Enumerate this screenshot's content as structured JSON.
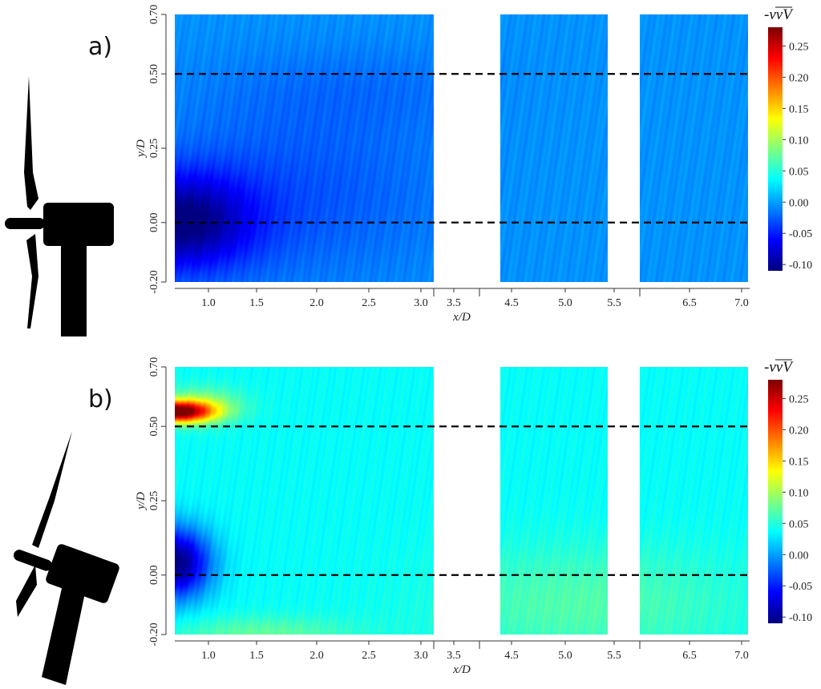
{
  "chart_data": [
    {
      "type": "heatmap",
      "panel_label": "a)",
      "xlabel": "x/D",
      "ylabel": "y/D",
      "x_ticks": [
        "1.0",
        "1.5",
        "2.0",
        "2.5",
        "3.0",
        "3.5",
        "4.5",
        "5.0",
        "5.5",
        "6.5",
        "7.0"
      ],
      "y_ticks": [
        "-0.20",
        "0.00",
        "0.25",
        "0.50",
        "0.70"
      ],
      "measured_x_windows": [
        [
          0.65,
          3.2
        ],
        [
          4.3,
          5.45
        ],
        [
          5.85,
          7.05
        ]
      ],
      "ylim": [
        -0.2,
        0.7
      ],
      "reference_lines_y": [
        0.0,
        0.5
      ],
      "colorbar": {
        "title": "-vvV",
        "range": [
          -0.11,
          0.28
        ],
        "ticks": [
          "0.25",
          "0.20",
          "0.15",
          "0.10",
          "0.05",
          "0.00",
          "-0.05",
          "-0.10"
        ]
      },
      "field": {
        "background": -0.005,
        "features": [
          {
            "x": 0.7,
            "y": 0.0,
            "sx": 0.7,
            "sy": 0.16,
            "value": -0.1
          },
          {
            "x": 1.8,
            "y": 0.1,
            "sx": 1.5,
            "sy": 0.3,
            "value": -0.025
          },
          {
            "x": 2.5,
            "y": 0.45,
            "sx": 1.5,
            "sy": 0.15,
            "value": -0.012
          }
        ]
      }
    },
    {
      "type": "heatmap",
      "panel_label": "b)",
      "xlabel": "x/D",
      "ylabel": "y/D",
      "x_ticks": [
        "1.0",
        "1.5",
        "2.0",
        "2.5",
        "3.0",
        "3.5",
        "4.5",
        "5.0",
        "5.5",
        "6.5",
        "7.0"
      ],
      "y_ticks": [
        "-0.20",
        "0.00",
        "0.25",
        "0.50",
        "0.70"
      ],
      "measured_x_windows": [
        [
          0.65,
          3.2
        ],
        [
          4.3,
          5.45
        ],
        [
          5.85,
          7.05
        ]
      ],
      "ylim": [
        -0.2,
        0.7
      ],
      "reference_lines_y": [
        0.0,
        0.5
      ],
      "colorbar": {
        "title": "-vvV",
        "range": [
          -0.11,
          0.28
        ],
        "ticks": [
          "0.25",
          "0.20",
          "0.15",
          "0.10",
          "0.05",
          "0.00",
          "-0.05",
          "-0.10"
        ]
      },
      "field": {
        "background": 0.038,
        "features": [
          {
            "x": 0.65,
            "y": 0.55,
            "sx": 0.35,
            "sy": 0.035,
            "value": 0.24
          },
          {
            "x": 0.9,
            "y": 0.57,
            "sx": 0.4,
            "sy": 0.06,
            "value": 0.06
          },
          {
            "x": 0.65,
            "y": 0.04,
            "sx": 0.35,
            "sy": 0.12,
            "value": -0.15
          },
          {
            "x": 5.2,
            "y": -0.1,
            "sx": 1.8,
            "sy": 0.2,
            "value": 0.03
          },
          {
            "x": 1.5,
            "y": -0.2,
            "sx": 0.9,
            "sy": 0.06,
            "value": 0.035
          }
        ]
      }
    }
  ]
}
